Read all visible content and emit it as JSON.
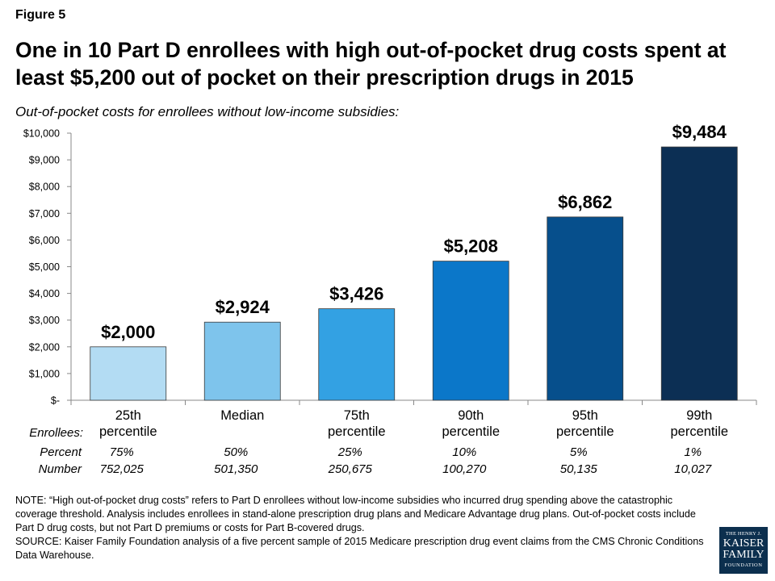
{
  "figure_label": "Figure 5",
  "title": "One in 10 Part D enrollees with high out-of-pocket drug costs spent at least $5,200 out of pocket on their prescription drugs in 2015",
  "subtitle": "Out-of-pocket costs for enrollees without low-income subsidies:",
  "chart_data": {
    "type": "bar",
    "categories": [
      [
        "25th",
        "percentile"
      ],
      [
        "Median"
      ],
      [
        "75th",
        "percentile"
      ],
      [
        "90th",
        "percentile"
      ],
      [
        "95th",
        "percentile"
      ],
      [
        "99th",
        "percentile"
      ]
    ],
    "values": [
      2000,
      2924,
      3426,
      5208,
      6862,
      9484
    ],
    "data_labels": [
      "$2,000",
      "$2,924",
      "$3,426",
      "$5,208",
      "$6,862",
      "$9,484"
    ],
    "bar_colors": [
      "#b3dcf3",
      "#7ec4ec",
      "#33a1e3",
      "#0b77c9",
      "#064f8c",
      "#0c2f54"
    ],
    "ylim": [
      0,
      10000
    ],
    "yticks": [
      0,
      1000,
      2000,
      3000,
      4000,
      5000,
      6000,
      7000,
      8000,
      9000,
      10000
    ],
    "ytick_labels": [
      "$-",
      "$1,000",
      "$2,000",
      "$3,000",
      "$4,000",
      "$5,000",
      "$6,000",
      "$7,000",
      "$8,000",
      "$9,000",
      "$10,000"
    ],
    "grid": false,
    "legend": "none"
  },
  "enrollees": {
    "heading": "Enrollees:",
    "percent_label": "Percent",
    "number_label": "Number",
    "percent": [
      "75%",
      "50%",
      "25%",
      "10%",
      "5%",
      "1%"
    ],
    "number": [
      "752,025",
      "501,350",
      "250,675",
      "100,270",
      "50,135",
      "10,027"
    ]
  },
  "notes": {
    "note": "NOTE: “High out-of-pocket drug costs” refers to Part D enrollees without low-income subsidies who incurred drug spending above the catastrophic coverage threshold. Analysis includes enrollees in stand-alone prescription drug plans and Medicare Advantage drug plans. Out-of-pocket costs include Part D drug costs, but not Part D premiums or costs for Part B-covered drugs.",
    "source": "SOURCE: Kaiser Family Foundation analysis of a five percent sample of 2015 Medicare prescription drug event claims from the CMS Chronic Conditions Data Warehouse."
  },
  "logo": {
    "line1": "THE HENRY J.",
    "line2": "KAISER",
    "line3": "FAMILY",
    "line4": "FOUNDATION"
  }
}
